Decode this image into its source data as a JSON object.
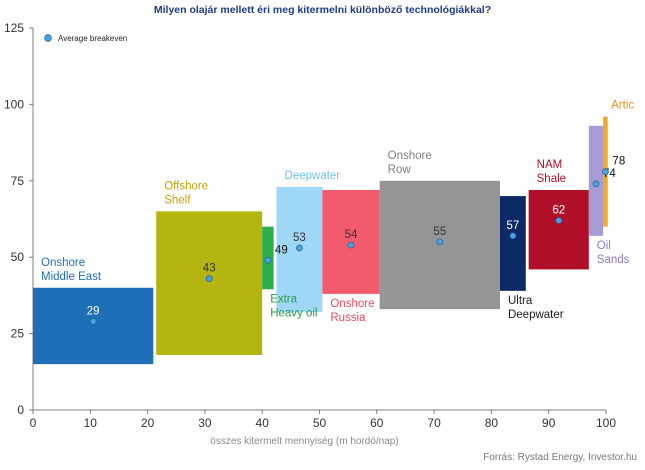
{
  "title": "Milyen olajár  mellett éri meg kitermelni különböző  technológiákkal?",
  "source": "Forrás: Rystad Energy,  Investor.hu",
  "chart_data": {
    "type": "bar",
    "title": "Milyen olajár  mellett éri meg kitermelni különböző  technológiákkal?",
    "xlabel": "összes kitermelt mennyiség (m hordó/nap)",
    "ylabel": "",
    "xlim": [
      0,
      100
    ],
    "ylim": [
      0,
      125
    ],
    "xticks": [
      0,
      10,
      20,
      30,
      40,
      50,
      60,
      70,
      80,
      90,
      100
    ],
    "yticks": [
      0,
      25,
      50,
      75,
      100,
      125
    ],
    "grid": false,
    "legend": {
      "position": "top-left",
      "label": "Average  breakeven"
    },
    "marker_color": "#4aa3df",
    "series": [
      {
        "name": "Onshore Middle East",
        "x0": 0,
        "x1": 21,
        "low": 15,
        "high": 40,
        "average": 29,
        "color": "#1f6eb8",
        "label_lines": [
          "Onshore",
          "Middle East"
        ],
        "label_color": "#1f6eb8",
        "label_pos": "above-left"
      },
      {
        "name": "Offshore Shelf",
        "x0": 21.5,
        "x1": 40,
        "low": 18,
        "high": 65,
        "average": 43,
        "color": "#b5b512",
        "label_lines": [
          "Offshore",
          "Shelf"
        ],
        "label_color": "#c9a10a",
        "label_pos": "above-left"
      },
      {
        "name": "Extra Heavy oil",
        "x0": 40,
        "x1": 42,
        "low": 39.5,
        "high": 60,
        "average": 49,
        "color": "#2db04b",
        "label_lines": [
          "Extra",
          "Heavy oil"
        ],
        "label_color": "#2e9e44",
        "label_pos": "below-left"
      },
      {
        "name": "Deepwater",
        "x0": 42.5,
        "x1": 50.5,
        "low": 32,
        "high": 73,
        "average": 53,
        "color": "#9fd8f6",
        "label_lines": [
          "Deepwater"
        ],
        "label_color": "#6cc3ee",
        "label_pos": "above-left"
      },
      {
        "name": "Onshore Russia",
        "x0": 50.5,
        "x1": 60.5,
        "low": 38,
        "high": 72,
        "average": 54,
        "color": "#f25a6e",
        "label_lines": [
          "Onshore",
          "Russia"
        ],
        "label_color": "#e84a5f",
        "label_pos": "below-left"
      },
      {
        "name": "Onshore Row",
        "x0": 60.5,
        "x1": 81.5,
        "low": 33,
        "high": 75,
        "average": 55,
        "color": "#959595",
        "label_lines": [
          "Onshore",
          "Row"
        ],
        "label_color": "#7f7f7f",
        "label_pos": "above-left"
      },
      {
        "name": "Ultra Deepwater",
        "x0": 81.5,
        "x1": 86,
        "low": 39,
        "high": 70,
        "average": 57,
        "color": "#0e2a66",
        "label_lines": [
          "Ultra",
          "Deepwater"
        ],
        "label_color": "#1a1a1a",
        "label_pos": "below-left"
      },
      {
        "name": "NAM Shale",
        "x0": 86.5,
        "x1": 97,
        "low": 46,
        "high": 72,
        "average": 62,
        "color": "#b0102a",
        "label_lines": [
          "NAM",
          "Shale"
        ],
        "label_color": "#b0102a",
        "label_pos": "above-left"
      },
      {
        "name": "Oil Sands",
        "x0": 97,
        "x1": 99.5,
        "low": 57,
        "high": 93,
        "average": 74,
        "color": "#a79bd3",
        "label_lines": [
          "Oil",
          "Sands"
        ],
        "label_color": "#8a7bc4",
        "label_pos": "below-left"
      },
      {
        "name": "Artic",
        "x0": 99.5,
        "x1": 100.3,
        "low": 60,
        "high": 96,
        "average": 78,
        "color": "#f0a826",
        "label_lines": [
          "Artic"
        ],
        "label_color": "#e0951a",
        "label_pos": "above-left"
      }
    ]
  }
}
